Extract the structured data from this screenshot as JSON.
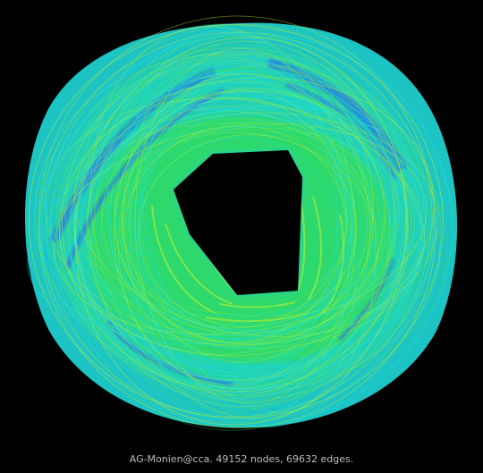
{
  "caption": "AG-Monien@cca. 49152 nodes, 69632 edges.",
  "colors": {
    "background": "#000000",
    "cyan": "#19e6e6",
    "aqua": "#2ad8c8",
    "green": "#33e066",
    "yellow_green": "#b8f033",
    "blue": "#2a70e8",
    "orange": "#e0a030",
    "caption_text": "#bfbfbf"
  }
}
